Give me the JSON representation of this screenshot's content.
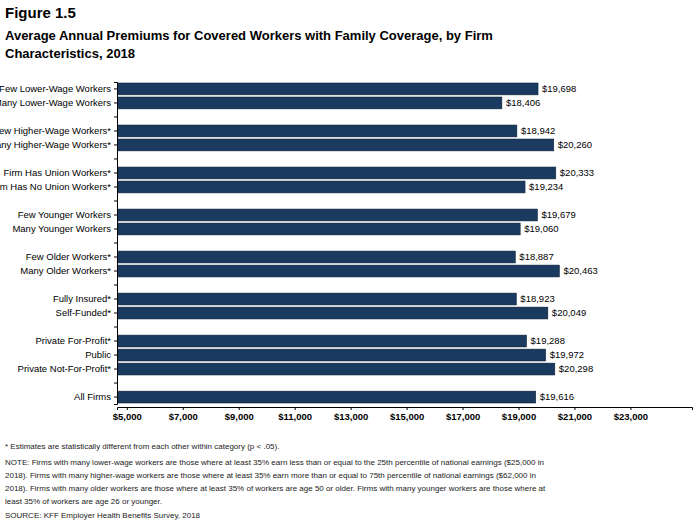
{
  "chart_data": {
    "type": "bar",
    "orientation": "horizontal",
    "title": "Figure 1.5",
    "subtitle": [
      "Average Annual Premiums for Covered Workers with Family Coverage, by Firm",
      "Characteristics, 2018"
    ],
    "categories": [
      "Few Lower-Wage Workers",
      "Many Lower-Wage Workers",
      null,
      "Few Higher-Wage Workers*",
      "Many Higher-Wage Workers*",
      null,
      "Firm Has Union Workers*",
      "Firm Has No Union Workers*",
      null,
      "Few Younger Workers",
      "Many Younger Workers",
      null,
      "Few Older Workers*",
      "Many Older Workers*",
      null,
      "Fully Insured*",
      "Self-Funded*",
      null,
      "Private For-Profit*",
      "Public",
      "Private Not-For-Profit*",
      null,
      "All Firms"
    ],
    "values": [
      19698,
      18406,
      null,
      18942,
      20260,
      null,
      20333,
      19234,
      null,
      19679,
      19060,
      null,
      18887,
      20463,
      null,
      18923,
      20049,
      null,
      19288,
      19972,
      20298,
      null,
      19616
    ],
    "value_labels": [
      "$19,698",
      "$18,406",
      null,
      "$18,942",
      "$20,260",
      null,
      "$20,333",
      "$19,234",
      null,
      "$19,679",
      "$19,060",
      null,
      "$18,887",
      "$20,463",
      null,
      "$18,923",
      "$20,049",
      null,
      "$19,288",
      "$19,972",
      "$20,298",
      null,
      "$19,616"
    ],
    "color": "#1b3a5f",
    "data_labels": true,
    "grid": false,
    "xlim": [
      4650,
      25200
    ],
    "xticks": [
      {
        "value": 5000,
        "label": "$5,000"
      },
      {
        "value": 7000,
        "label": "$7,000"
      },
      {
        "value": 9000,
        "label": "$9,000"
      },
      {
        "value": 11000,
        "label": "$11,000"
      },
      {
        "value": 13000,
        "label": "$13,000"
      },
      {
        "value": 15000,
        "label": "$15,000"
      },
      {
        "value": 17000,
        "label": "$17,000"
      },
      {
        "value": 19000,
        "label": "$19,000"
      },
      {
        "value": 21000,
        "label": "$21,000"
      },
      {
        "value": 23000,
        "label": "$23,000"
      }
    ],
    "notes": [
      "* Estimates are statistically different from each other within category (p < .05).",
      "NOTE: Firms with many lower-wage workers are those where at least 35% earn less than or equal to the 25th percentile of national earnings ($25,000 in",
      "2018). Firms with many higher-wage workers are those where at least 35% earn more than or equal to 75th percentile of national earnings ($62,000 in",
      "2018). Firms with many older workers are those where at least 35% of workers are age 50 or older. Firms with many younger workers are those where at",
      "least 35% of workers are age 26 or younger.",
      "SOURCE: KFF Employer Health Benefits Survey, 2018"
    ]
  }
}
